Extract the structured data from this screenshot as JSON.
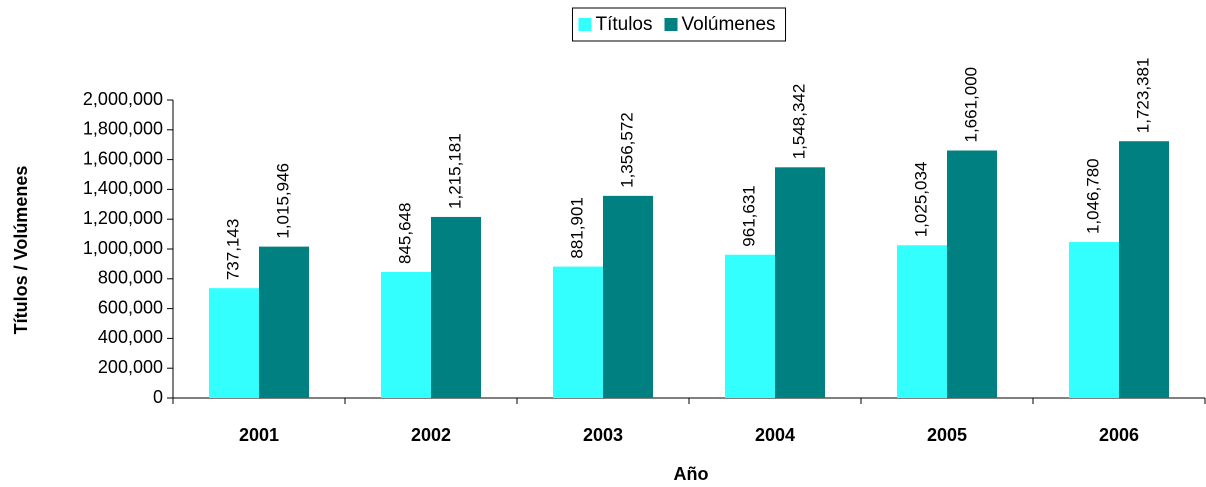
{
  "chart_data": {
    "type": "bar",
    "categories": [
      "2001",
      "2002",
      "2003",
      "2004",
      "2005",
      "2006"
    ],
    "series": [
      {
        "name": "Títulos",
        "color": "#33ffff",
        "values": [
          737143,
          845648,
          881901,
          961631,
          1025034,
          1046780
        ],
        "value_labels": [
          "737,143",
          "845,648",
          "881,901",
          "961,631",
          "1,025,034",
          "1,046,780"
        ]
      },
      {
        "name": "Volúmenes",
        "color": "#008080",
        "values": [
          1015946,
          1215181,
          1356572,
          1548342,
          1661000,
          1723381
        ],
        "value_labels": [
          "1,015,946",
          "1,215,181",
          "1,356,572",
          "1,548,342",
          "1,661,000",
          "1,723,381"
        ]
      }
    ],
    "xlabel": "Año",
    "ylabel": "Títulos / Volúmenes",
    "ylim": [
      0,
      2000000
    ],
    "yticks": [
      0,
      {
        "value": 200000,
        "label": "200,000"
      },
      {
        "value": 400000,
        "label": "400,000"
      },
      {
        "value": 600000,
        "label": "600,000"
      },
      {
        "value": 800000,
        "label": "800,000"
      },
      {
        "value": 1000000,
        "label": "1,000,000"
      },
      {
        "value": 1200000,
        "label": "1,200,000"
      },
      {
        "value": 1400000,
        "label": "1,400,000"
      },
      {
        "value": 1600000,
        "label": "1,600,000"
      },
      {
        "value": 1800000,
        "label": "1,800,000"
      },
      {
        "value": 2000000,
        "label": "2,000,000"
      }
    ],
    "legend": "top"
  }
}
